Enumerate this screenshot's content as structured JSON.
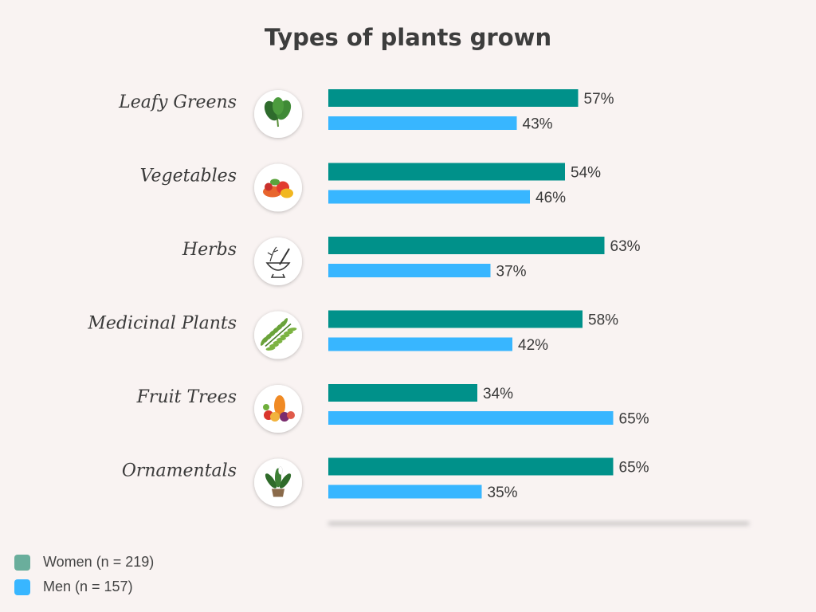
{
  "chart_data": {
    "type": "bar",
    "orientation": "horizontal",
    "title": "Types of plants grown",
    "categories": [
      "Leafy Greens",
      "Vegetables",
      "Herbs",
      "Medicinal Plants",
      "Fruit Trees",
      "Ornamentals"
    ],
    "icons": [
      "leafy-greens-icon",
      "vegetables-icon",
      "herbs-icon",
      "medicinal-plants-icon",
      "fruit-trees-icon",
      "ornamentals-icon"
    ],
    "series": [
      {
        "name": "Women (n = 219)",
        "values": [
          57,
          54,
          63,
          58,
          34,
          65
        ],
        "labels": [
          "57%",
          "54%",
          "63%",
          "58%",
          "34%",
          "65%"
        ],
        "color": "#00918a"
      },
      {
        "name": "Men (n = 157)",
        "values": [
          43,
          46,
          37,
          42,
          65,
          35
        ],
        "labels": [
          "43%",
          "46%",
          "37%",
          "42%",
          "65%",
          "35%"
        ],
        "color": "#38b6ff"
      }
    ],
    "xlim": [
      0,
      100
    ],
    "grid": false,
    "legend_position": "bottom-left"
  }
}
